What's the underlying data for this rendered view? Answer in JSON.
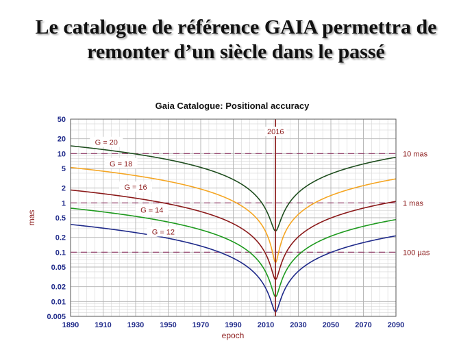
{
  "slide": {
    "title_line1": "Le catalogue de référence GAIA permettra de",
    "title_line2": "remonter d’un siècle dans le passé"
  },
  "chart_data": {
    "type": "line",
    "title": "Gaia Catalogue: Positional accuracy",
    "xlabel": "epoch",
    "ylabel": "mas",
    "xlim": [
      1890,
      2090
    ],
    "ylim": [
      0.005,
      50
    ],
    "y_scale": "log",
    "grid": true,
    "x_ticks": [
      1890,
      1910,
      1930,
      1950,
      1970,
      1990,
      2010,
      2030,
      2050,
      2070,
      2090
    ],
    "y_ticks": [
      {
        "value": 50,
        "label": "50"
      },
      {
        "value": 20,
        "label": "20"
      },
      {
        "value": 10,
        "label": "10"
      },
      {
        "value": 5,
        "label": "5"
      },
      {
        "value": 2,
        "label": "2"
      },
      {
        "value": 1,
        "label": "1"
      },
      {
        "value": 0.5,
        "label": "0.5"
      },
      {
        "value": 0.2,
        "label": "0.2"
      },
      {
        "value": 0.1,
        "label": "0.1"
      },
      {
        "value": 0.05,
        "label": "0.05"
      },
      {
        "value": 0.02,
        "label": "0.02"
      },
      {
        "value": 0.01,
        "label": "0.01"
      },
      {
        "value": 0.005,
        "label": "0.005"
      }
    ],
    "reference_epoch": {
      "x": 2016,
      "label": "2016",
      "color": "#8b1a1a"
    },
    "reference_lines": [
      {
        "y": 10,
        "label": "10 mas"
      },
      {
        "y": 1,
        "label": "1 mas"
      },
      {
        "y": 0.1,
        "label": "100 µas"
      }
    ],
    "series": [
      {
        "name": "G = 20",
        "color": "#1f4e1f",
        "pos": 0.27,
        "pm": 0.114,
        "label_at": {
          "x": 1912,
          "y": 17
        }
      },
      {
        "name": "G = 18",
        "color": "#f5a623",
        "pos": 0.062,
        "pm": 0.0415,
        "label_at": {
          "x": 1921,
          "y": 6.3
        }
      },
      {
        "name": "G = 16",
        "color": "#8b1a1a",
        "pos": 0.028,
        "pm": 0.0145,
        "label_at": {
          "x": 1930,
          "y": 2.1
        }
      },
      {
        "name": "G = 14",
        "color": "#1e9a1e",
        "pos": 0.0125,
        "pm": 0.0062,
        "label_at": {
          "x": 1940,
          "y": 0.72
        }
      },
      {
        "name": "G = 12",
        "color": "#1f2a8a",
        "pos": 0.0062,
        "pm": 0.0029,
        "label_at": {
          "x": 1947,
          "y": 0.26
        }
      }
    ]
  }
}
